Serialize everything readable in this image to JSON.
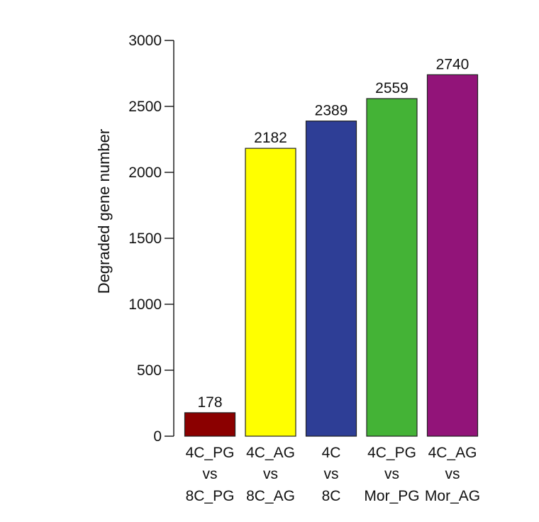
{
  "chart_data": {
    "type": "bar",
    "ylabel": "Degraded  gene number",
    "ylim": [
      0,
      3000
    ],
    "yticks": [
      0,
      500,
      1000,
      1500,
      2000,
      2500,
      3000
    ],
    "grid": false,
    "legend": "none",
    "categories": [
      [
        "4C_PG",
        "vs",
        "8C_PG"
      ],
      [
        "4C_AG",
        "vs",
        "8C_AG"
      ],
      [
        "4C",
        "vs",
        "8C"
      ],
      [
        "4C_PG",
        "vs",
        "Mor_PG"
      ],
      [
        "4C_AG",
        "vs",
        "Mor_AG"
      ]
    ],
    "values": [
      178,
      2182,
      2389,
      2559,
      2740
    ],
    "colors": [
      "#8b0000",
      "#ffff00",
      "#2e3e96",
      "#44b336",
      "#921479"
    ]
  }
}
